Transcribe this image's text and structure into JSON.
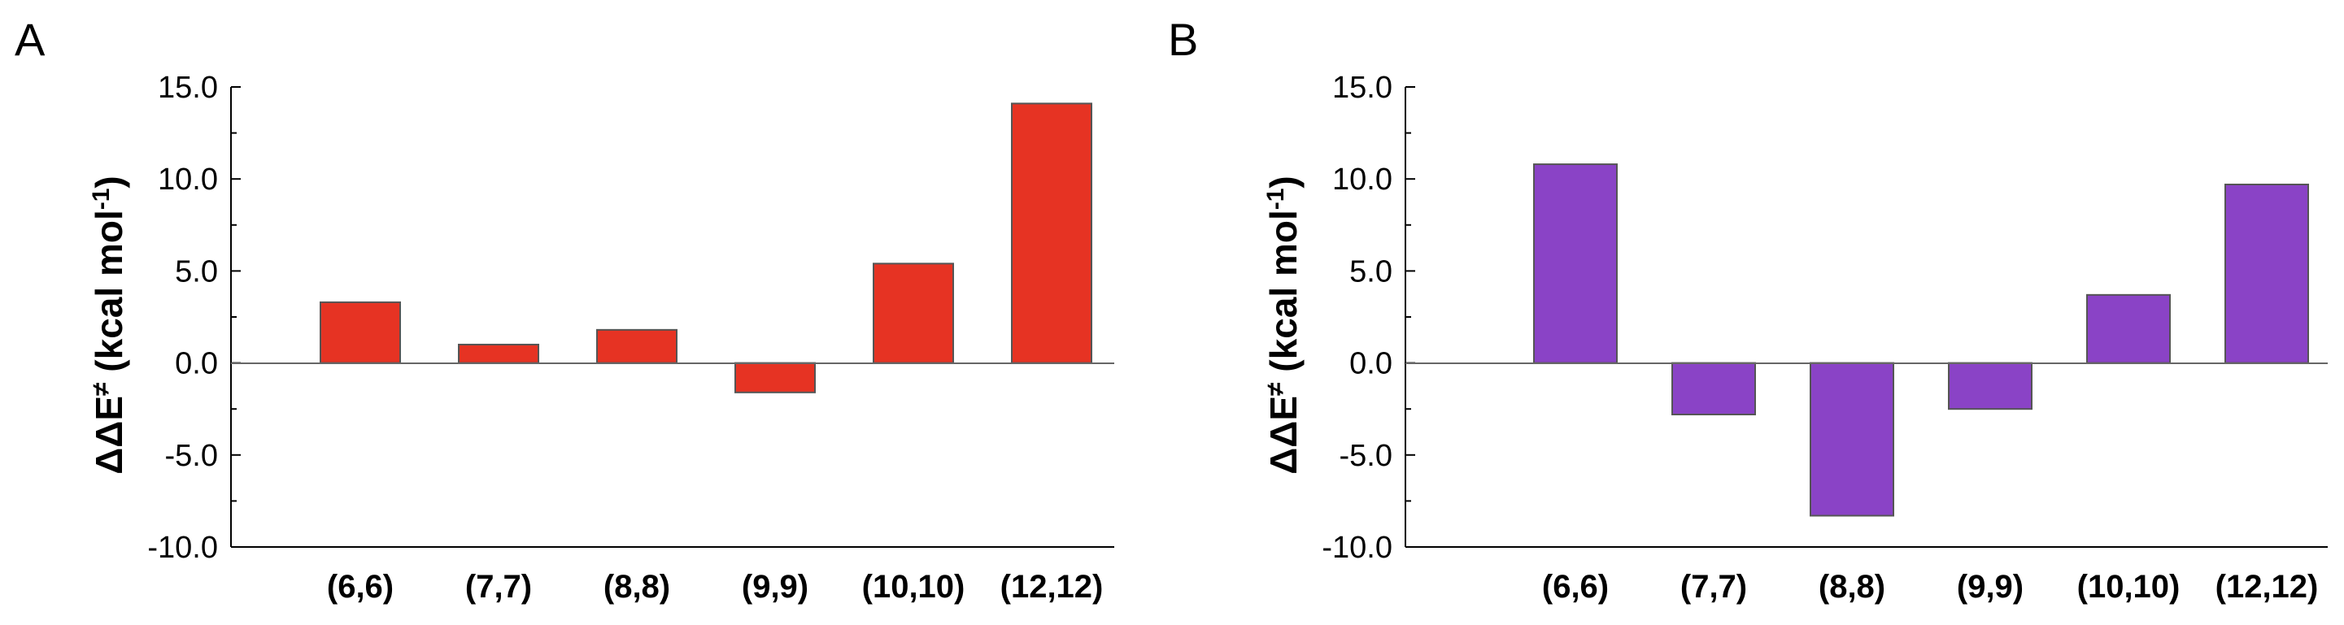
{
  "chart_data": [
    {
      "panel": "A",
      "type": "bar",
      "categories": [
        "(6,6)",
        "(7,7)",
        "(8,8)",
        "(9,9)",
        "(10,10)",
        "(12,12)"
      ],
      "values": [
        3.3,
        1.0,
        1.8,
        -1.6,
        5.4,
        14.1
      ],
      "ylabel": {
        "prefix": "ΔΔE",
        "sup1": "≠",
        "mid": " (kcal mol",
        "sup2": "-1",
        "suffix": ")"
      },
      "ylim": [
        -10.0,
        15.0
      ],
      "yticks": [
        "15.0",
        "10.0",
        "5.0",
        "0.0",
        "-5.0",
        "-10.0"
      ],
      "ytick_values": [
        15,
        10,
        5,
        0,
        -5,
        -10
      ],
      "color": "#e63323",
      "grid": false
    },
    {
      "panel": "B",
      "type": "bar",
      "categories": [
        "(6,6)",
        "(7,7)",
        "(8,8)",
        "(9,9)",
        "(10,10)",
        "(12,12)"
      ],
      "values": [
        10.8,
        -2.8,
        -8.3,
        -2.5,
        3.7,
        9.7
      ],
      "ylabel": {
        "prefix": "ΔΔE",
        "sup1": "≠",
        "mid": " (kcal mol",
        "sup2": "-1",
        "suffix": ")"
      },
      "ylim": [
        -10.0,
        15.0
      ],
      "yticks": [
        "15.0",
        "10.0",
        "5.0",
        "0.0",
        "-5.0",
        "-10.0"
      ],
      "ytick_values": [
        15,
        10,
        5,
        0,
        -5,
        -10
      ],
      "color": "#8a43c6",
      "grid": false
    }
  ]
}
